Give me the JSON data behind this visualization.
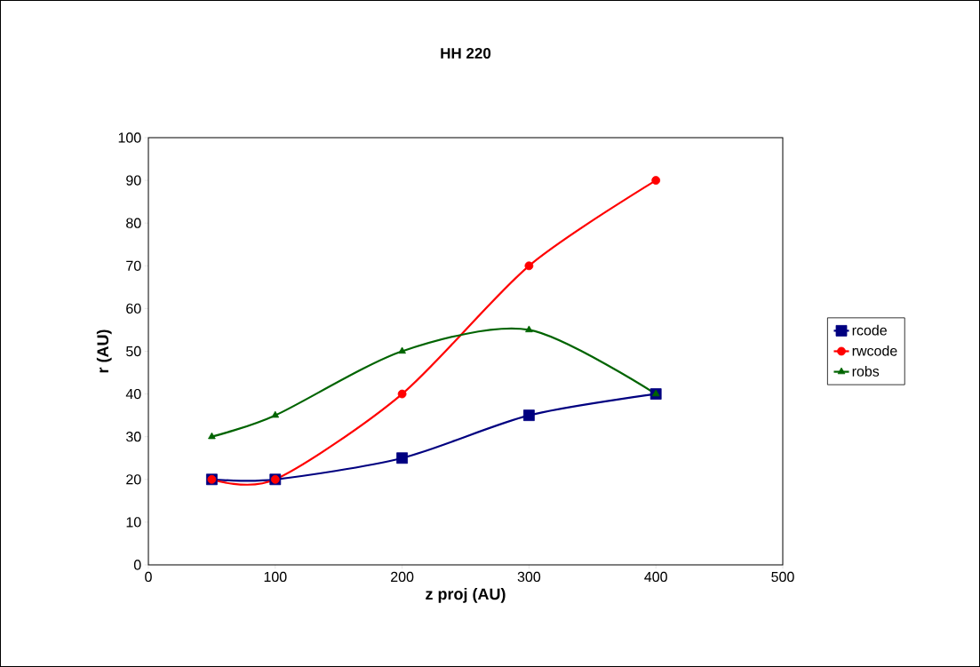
{
  "chart_data": {
    "type": "line",
    "title": "HH 220",
    "xlabel": "z proj (AU)",
    "ylabel": "r (AU)",
    "x": [
      50,
      100,
      200,
      300,
      400
    ],
    "series": [
      {
        "name": "rcode",
        "color": "#000080",
        "marker": "square",
        "values": [
          20,
          20,
          25,
          35,
          40
        ]
      },
      {
        "name": "rwcode",
        "color": "#ff0000",
        "marker": "circle",
        "values": [
          20,
          20,
          40,
          70,
          90
        ]
      },
      {
        "name": "robs",
        "color": "#006400",
        "marker": "triangle",
        "values": [
          30,
          35,
          50,
          55,
          40
        ]
      }
    ],
    "xlim": [
      0,
      500
    ],
    "xticks": [
      0,
      100,
      200,
      300,
      400,
      500
    ],
    "ylim": [
      0,
      100
    ],
    "yticks": [
      0,
      10,
      20,
      30,
      40,
      50,
      60,
      70,
      80,
      90,
      100
    ],
    "grid": false,
    "legend": "right",
    "line_style": "solid"
  }
}
